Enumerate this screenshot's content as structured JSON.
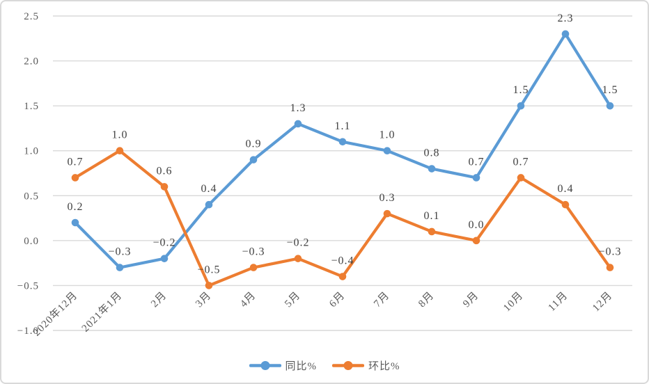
{
  "chart_data": {
    "type": "line",
    "title": "",
    "xlabel": "",
    "ylabel": "",
    "categories": [
      "2020年12月",
      "2021年1月",
      "2月",
      "3月",
      "4月",
      "5月",
      "6月",
      "7月",
      "8月",
      "9月",
      "10月",
      "11月",
      "12月"
    ],
    "series": [
      {
        "name": "同比%",
        "color": "#5B9BD5",
        "values": [
          0.2,
          -0.3,
          -0.2,
          0.4,
          0.9,
          1.3,
          1.1,
          1.0,
          0.8,
          0.7,
          1.5,
          2.3,
          1.5
        ]
      },
      {
        "name": "环比%",
        "color": "#ED7D31",
        "values": [
          0.7,
          1.0,
          0.6,
          -0.5,
          -0.3,
          -0.2,
          -0.4,
          0.3,
          0.1,
          0.0,
          0.7,
          0.4,
          -0.3
        ]
      }
    ],
    "ylim": [
      -1.0,
      2.5
    ],
    "ytick_labels": [
      "2.5",
      "2.0",
      "1.5",
      "1.0",
      "0.5",
      "0.0",
      "-0.5",
      "-1.0"
    ],
    "grid": true,
    "data_labels": true,
    "legend_position": "bottom",
    "colors": {
      "gridline": "#d9d9d9",
      "axis_text": "#595959",
      "data_label_text": "#404040",
      "frame_border": "#d9d9d9",
      "background": "#ffffff"
    }
  }
}
